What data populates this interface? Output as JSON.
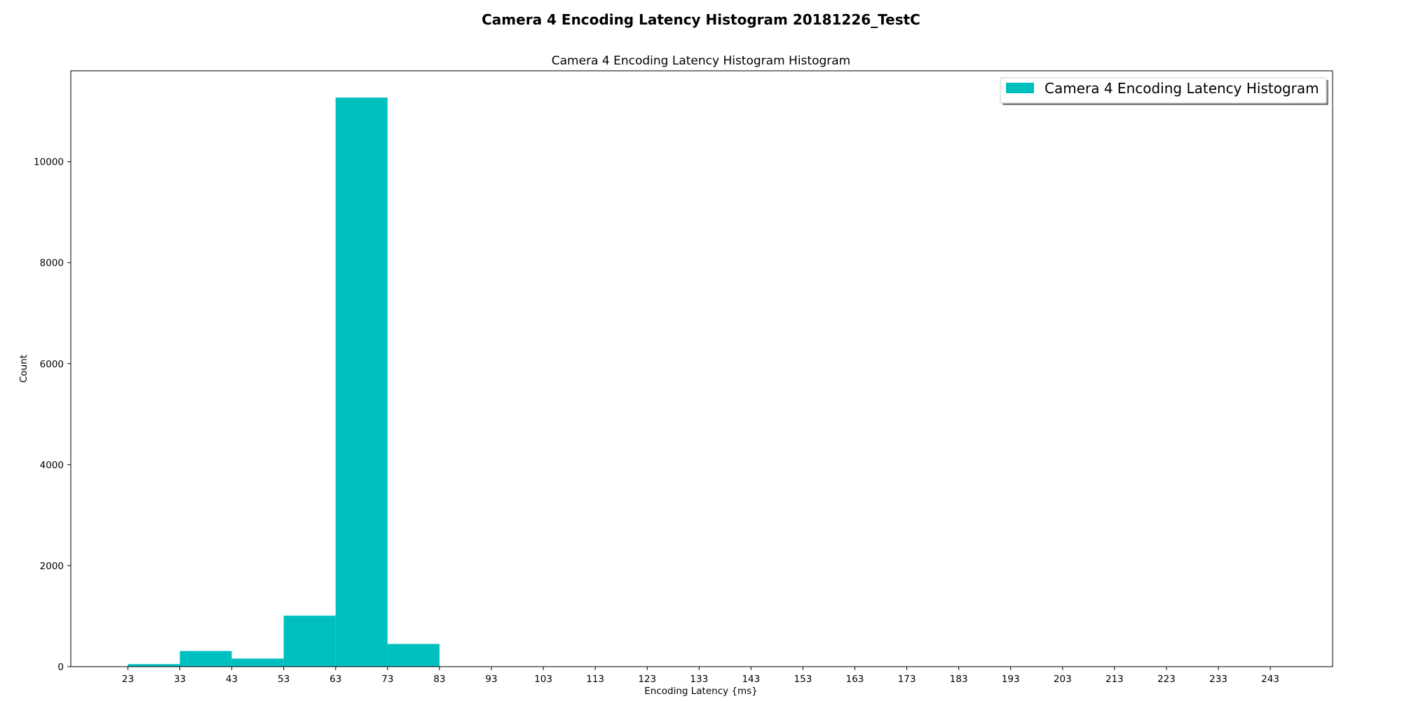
{
  "chart_data": {
    "type": "bar",
    "title": "Camera 4 Encoding Latency Histogram 20181226_TestC",
    "subtitle": "Camera 4 Encoding Latency Histogram Histogram",
    "xlabel": "Encoding Latency {ms}",
    "ylabel": "Count",
    "xlim": [
      12,
      255
    ],
    "ylim": [
      0,
      11800
    ],
    "grid": false,
    "legend_position": "top-right",
    "bar_color": "#00BFBF",
    "x_ticks": [
      23,
      33,
      43,
      53,
      63,
      73,
      83,
      93,
      103,
      113,
      123,
      133,
      143,
      153,
      163,
      173,
      183,
      193,
      203,
      213,
      223,
      233,
      243
    ],
    "y_ticks": [
      0,
      2000,
      4000,
      6000,
      8000,
      10000
    ],
    "series": [
      {
        "name": "Camera 4 Encoding Latency Histogram",
        "bin_edges": [
          23,
          33,
          43,
          53,
          63,
          73,
          83
        ],
        "values": [
          50,
          310,
          160,
          1010,
          11270,
          450
        ]
      }
    ]
  }
}
